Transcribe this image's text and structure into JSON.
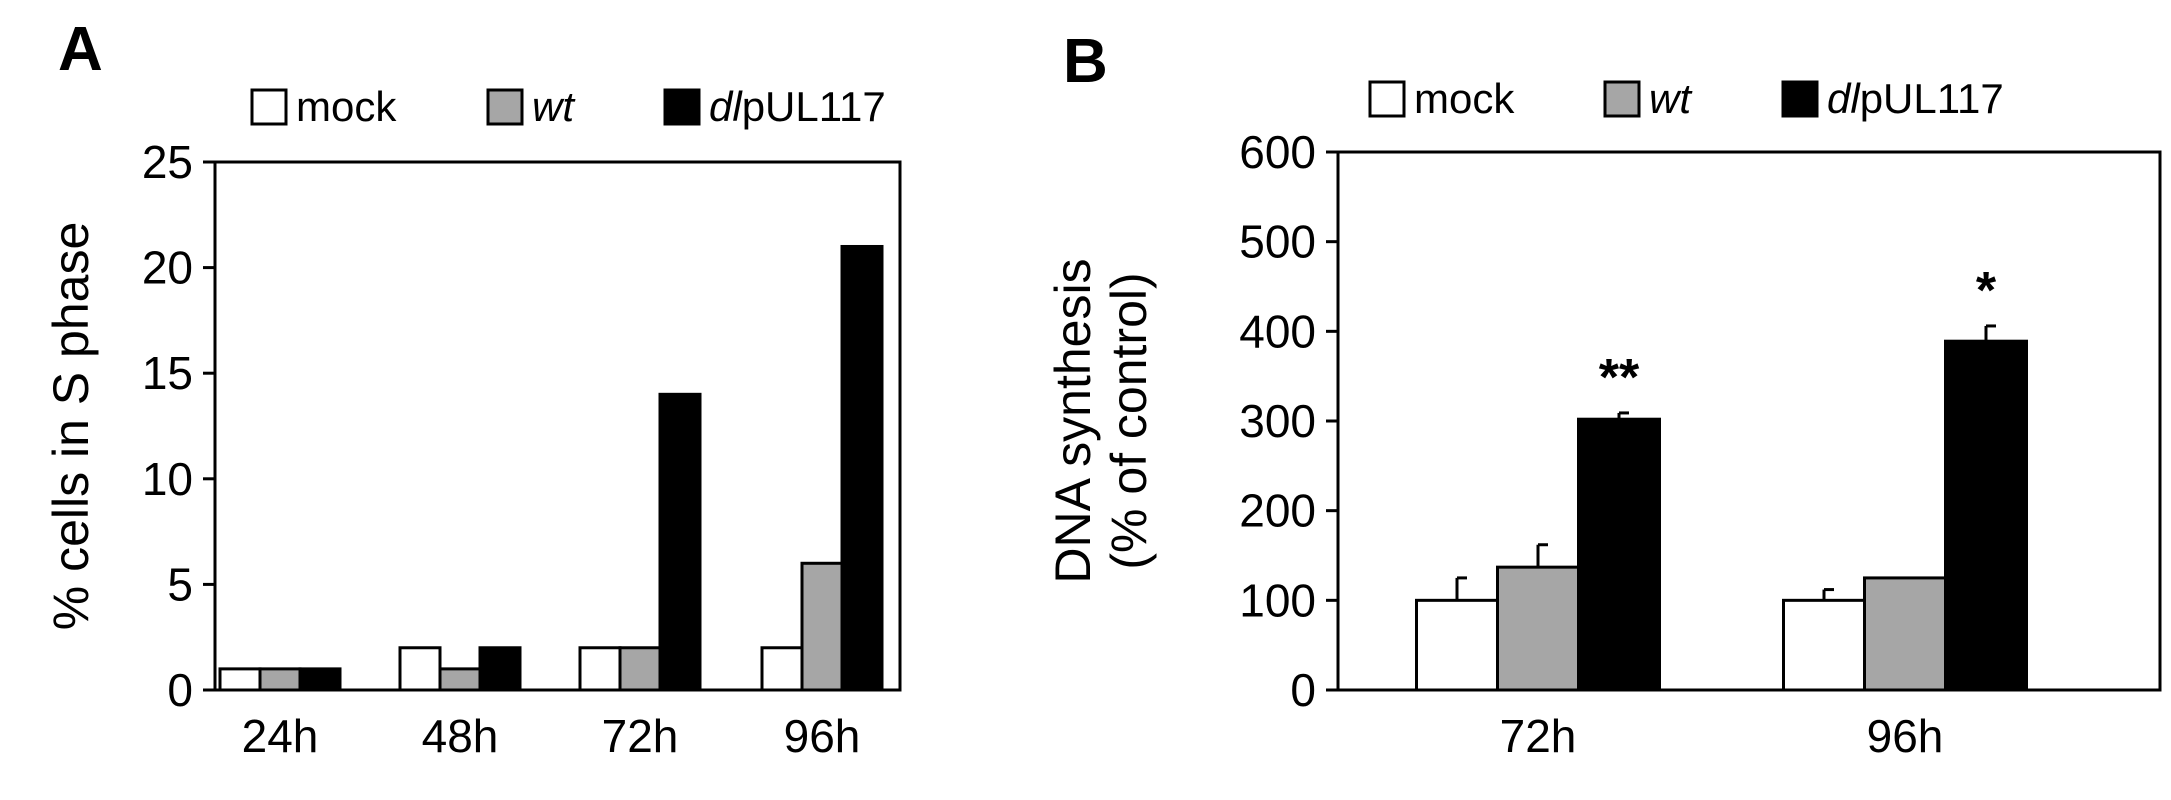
{
  "chart_data": [
    {
      "panel": "A",
      "type": "bar",
      "categories": [
        "24h",
        "48h",
        "72h",
        "96h"
      ],
      "series": [
        {
          "name": "mock",
          "values": [
            1,
            2,
            2,
            2
          ]
        },
        {
          "name": "wt",
          "values": [
            1,
            1,
            2,
            6
          ]
        },
        {
          "name": "dlpUL117",
          "values": [
            1,
            2,
            14,
            21
          ]
        }
      ],
      "xlabel": "",
      "ylabel": "% cells in S phase",
      "ylim": [
        0,
        25
      ],
      "yticks": [
        "0",
        "5",
        "10",
        "15",
        "20",
        "25"
      ],
      "grid": false,
      "legend_position": "top"
    },
    {
      "panel": "B",
      "type": "bar",
      "categories": [
        "72h",
        "96h"
      ],
      "series": [
        {
          "name": "mock",
          "values": [
            100,
            100
          ],
          "errors": [
            25,
            12
          ]
        },
        {
          "name": "wt",
          "values": [
            137,
            125
          ],
          "errors": [
            25,
            0
          ]
        },
        {
          "name": "dlpUL117",
          "values": [
            302,
            389
          ],
          "errors": [
            7,
            17
          ]
        }
      ],
      "annotations": [
        "**",
        "*"
      ],
      "xlabel": "",
      "ylabel": [
        "DNA synthesis",
        "(% of control)"
      ],
      "ylim": [
        0,
        600
      ],
      "yticks": [
        "0",
        "100",
        "200",
        "300",
        "400",
        "500",
        "600"
      ],
      "grid": false,
      "legend_position": "top"
    }
  ],
  "legend": [
    {
      "label": "mock",
      "italic_part": "",
      "normal_part": "mock",
      "color": "#ffffff"
    },
    {
      "label": "wt",
      "italic_part": "wt",
      "normal_part": "",
      "color": "#a6a6a6"
    },
    {
      "label": "dlpUL117",
      "italic_part": "dl",
      "normal_part": "pUL117",
      "color": "#000000"
    }
  ]
}
